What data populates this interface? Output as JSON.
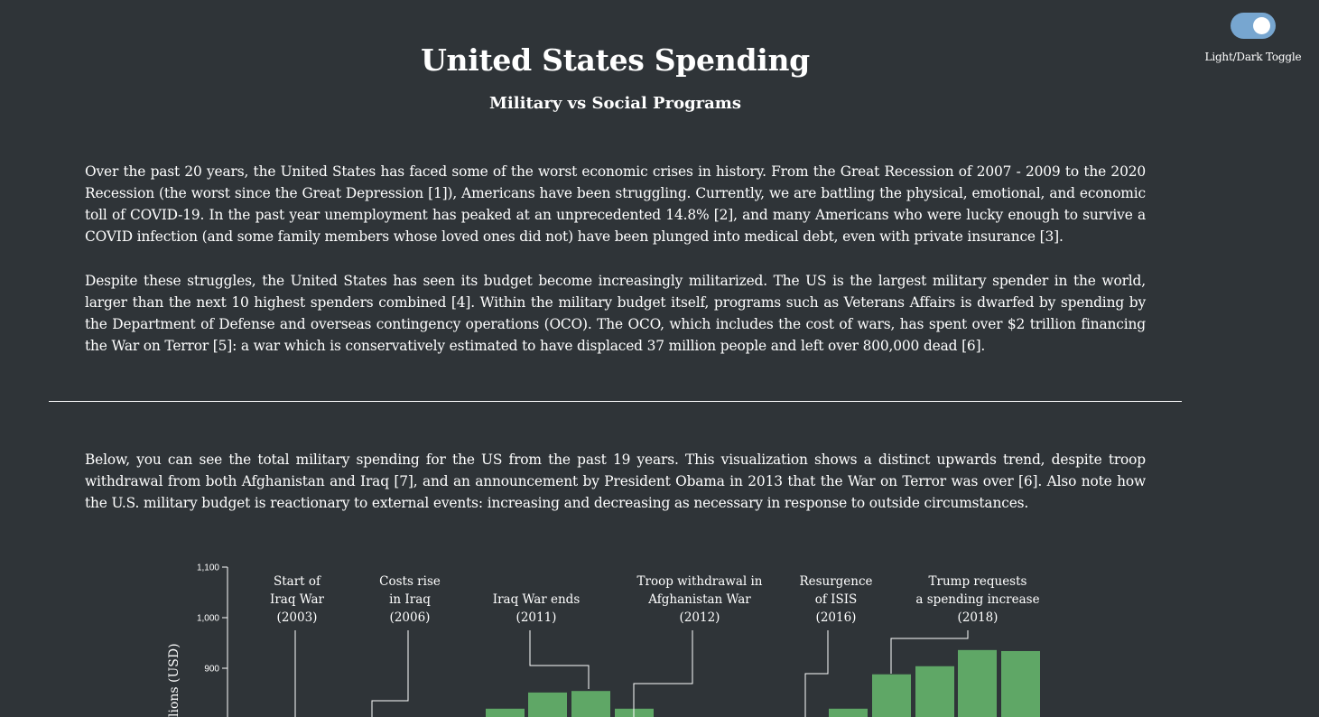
{
  "toggle": {
    "label": "Light/Dark Toggle",
    "state": "on"
  },
  "header": {
    "title": "United States Spending",
    "subtitle": "Military vs Social Programs"
  },
  "intro": {
    "paragraph1": "Over the past 20 years, the United States has faced some of the worst economic crises in history. From the Great Recession of 2007 - 2009 to the 2020 Recession (the worst since the Great Depression [1]), Americans have been struggling. Currently, we are battling the physical, emotional, and economic toll of COVID-19. In the past year unemployment has peaked at an unprecedented 14.8% [2], and many Americans who were lucky enough to survive a COVID infection (and some family members whose loved ones did not) have been plunged into medical debt, even with private insurance [3].",
    "paragraph2": "Despite these struggles, the United States has seen its budget become increasingly militarized. The US is the largest military spender in the world, larger than the next 10 highest spenders combined [4]. Within the military budget itself, programs such as Veterans Affairs is dwarfed by spending by the Department of Defense and overseas contingency operations (OCO). The OCO, which includes the cost of wars, has spent over $2 trillion financing the War on Terror [5]: a war which is conservatively estimated to have displaced 37 million people and left over 800,000 dead [6]."
  },
  "section": {
    "paragraph": "Below, you can see the total military spending for the US from the past 19 years. This visualization shows a distinct upwards trend, despite troop withdrawal from both Afghanistan and Iraq [7], and an announcement by President Obama in 2013 that the War on Terror was over [6]. Also note how the U.S. military budget is reactionary to external events: increasing and decreasing as necessary in response to outside circumstances."
  },
  "colors": {
    "background": "#2f3438",
    "bar": "#5fa766",
    "text": "#ffffff",
    "toggle": "#77a6d0"
  },
  "chart_data": {
    "type": "bar",
    "ylabel": "lions (USD)",
    "ylim": [
      700,
      1100
    ],
    "y_ticks": [
      "1,100",
      "1,000",
      "900"
    ],
    "bars_visible": [
      {
        "value": 820
      },
      {
        "value": 852
      },
      {
        "value": 855
      },
      {
        "value": 820
      },
      {
        "value": 820
      },
      {
        "value": 888
      },
      {
        "value": 904
      },
      {
        "value": 936
      },
      {
        "value": 934
      }
    ],
    "annotations": [
      {
        "lines": [
          "Start of",
          "Iraq War",
          "(2003)"
        ]
      },
      {
        "lines": [
          "Costs rise",
          "in Iraq",
          "(2006)"
        ]
      },
      {
        "lines": [
          "Iraq War ends",
          "(2011)"
        ]
      },
      {
        "lines": [
          "Troop withdrawal in",
          "Afghanistan War",
          "(2012)"
        ]
      },
      {
        "lines": [
          "Resurgence",
          "of ISIS",
          "(2016)"
        ]
      },
      {
        "lines": [
          "Trump requests",
          "a spending increase",
          "(2018)"
        ]
      }
    ]
  }
}
